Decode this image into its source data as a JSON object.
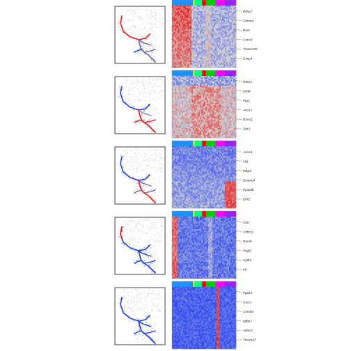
{
  "colors": {
    "high": "#e81e1e",
    "mid": "#d3d3d3",
    "low": "#1e3cf5",
    "frame": "#111111",
    "background_cells": "#c8c8c8",
    "leader_line": "#444444"
  },
  "cluster_bar_colors": [
    "#1e90ff",
    "#ffff00",
    "#00ff7f",
    "#ff0000",
    "#00cd00",
    "#ff00ff",
    "#a020f0"
  ],
  "chart_data": [
    {
      "type": "heatmap",
      "panel": 1,
      "trajectory_highlight": "red",
      "highlighted_branch": "upper-left arc",
      "dominant_pattern": "high in first cluster block, low elsewhere",
      "gene_labels": [
        "Rdsp7",
        "Chmo4",
        "Rian",
        "Cetst3",
        "Tmem170",
        "Gvsp4"
      ]
    },
    {
      "type": "heatmap",
      "panel": 2,
      "trajectory_highlight": "red",
      "highlighted_branch": "lower-right branches",
      "dominant_pattern": "mixed, high in middle-right clusters",
      "gene_labels": [
        "Rdss1",
        "Edd4",
        "Pig1",
        "Ace12",
        "Rasa3",
        "Sdc3"
      ]
    },
    {
      "type": "heatmap",
      "panel": 3,
      "trajectory_highlight": "red",
      "highlighted_branch": "lower-right terminal branch",
      "dominant_pattern": "low overall, high in last clusters",
      "gene_labels": [
        "Arrss4",
        "Vil1",
        "Pfkp5",
        "Emenu4",
        "Pyapdb",
        "Dhx2"
      ]
    },
    {
      "type": "heatmap",
      "panel": 4,
      "trajectory_highlight": "red",
      "highlighted_branch": "upper-left tip",
      "dominant_pattern": "high in first columns, low elsewhere",
      "gene_labels": [
        "Cdo",
        "Cdhr1c",
        "Rarnb",
        "Pcgf2",
        "Cyth1",
        "Kit"
      ]
    },
    {
      "type": "heatmap",
      "panel": 5,
      "trajectory_highlight": "blue",
      "highlighted_branch": "none (all blue)",
      "dominant_pattern": "low overall with narrow high stripe",
      "gene_labels": [
        "Pga10",
        "Isorc1",
        "Chmb4",
        "Igfbp1",
        "Aldoc1",
        "Tmem47"
      ]
    }
  ]
}
